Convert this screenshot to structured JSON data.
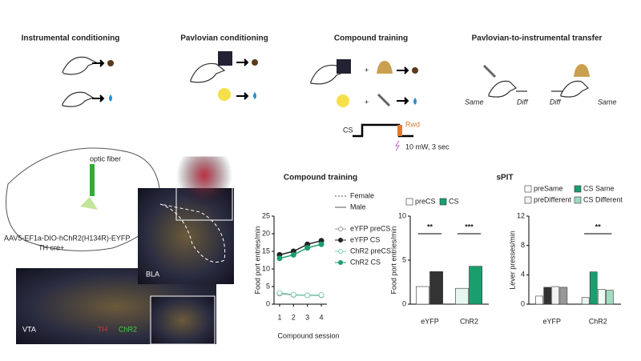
{
  "schematic": {
    "titles": [
      "Instrumental conditioning",
      "Pavlovian conditioning",
      "Compound training",
      "Pavlovian-to-instrumental transfer"
    ]
  },
  "compound": {
    "cs": "CS",
    "rwd": "Rwd",
    "stim": "10 mW, 3 sec"
  },
  "pit": {
    "labels": [
      "Same",
      "Diff",
      "Diff",
      "Same"
    ]
  },
  "histology": {
    "fiber": "optic fiber",
    "virus": "AAV5-EF1a-DIO-hChR2(H134R)-EYFP",
    "mouse": "TH cre+",
    "bla": "BLA",
    "vta": "VTA",
    "th": "TH",
    "chr2": "ChR2"
  },
  "chart_data": [
    {
      "type": "line",
      "title": "Compound training",
      "xlabel": "Compound session",
      "ylabel": "Food port entries/min",
      "x": [
        1,
        2,
        3,
        4
      ],
      "xlim": [
        0.6,
        4.4
      ],
      "xticks": [
        1,
        2,
        3,
        4
      ],
      "ylim": [
        0,
        25
      ],
      "yticks": [
        0,
        5,
        10,
        15,
        20,
        25
      ],
      "line_styles": [
        {
          "name": "Female",
          "dash": true
        },
        {
          "name": "Male",
          "dash": false
        }
      ],
      "series": [
        {
          "name": "eYFP preCS",
          "color": "#999999",
          "marker": "open",
          "values": [
            3,
            2.6,
            2.5,
            2.5
          ]
        },
        {
          "name": "eYFP CS",
          "color": "#222222",
          "marker": "filled",
          "values": [
            14,
            15,
            17,
            18
          ]
        },
        {
          "name": "ChR2 preCS",
          "color": "#7fcfb0",
          "marker": "open",
          "values": [
            3.2,
            2.7,
            2.5,
            2.6
          ]
        },
        {
          "name": "ChR2 CS",
          "color": "#1a9e6e",
          "marker": "filled",
          "values": [
            13,
            14,
            16,
            17
          ]
        }
      ]
    },
    {
      "type": "bar",
      "ylabel": "Food port entries/min",
      "categories": [
        "eYFP",
        "ChR2"
      ],
      "ylim": [
        0,
        10
      ],
      "yticks": [
        0,
        5,
        10
      ],
      "annotations": [
        "**",
        "***"
      ],
      "series": [
        {
          "name": "preCS",
          "color": "#ffffff",
          "colors": [
            "#ffffff",
            "#e8f6f0"
          ],
          "values": [
            2,
            1.8
          ]
        },
        {
          "name": "CS",
          "color": "#1a9e6e",
          "colors": [
            "#333333",
            "#1a9e6e"
          ],
          "values": [
            3.7,
            4.3
          ]
        }
      ]
    },
    {
      "type": "bar",
      "title": "sPIT",
      "ylabel": "Lever presses/min",
      "categories": [
        "eYFP",
        "ChR2"
      ],
      "ylim": [
        0,
        12
      ],
      "yticks": [
        0,
        4,
        8,
        12
      ],
      "annotations": [
        null,
        "**"
      ],
      "series": [
        {
          "name": "preSame",
          "color": "#ffffff",
          "colors": [
            "#ffffff",
            "#e8f6f0"
          ],
          "values": [
            1.1,
            0.9
          ]
        },
        {
          "name": "CS  Same",
          "color": "#1a9e6e",
          "colors": [
            "#333333",
            "#1a9e6e"
          ],
          "values": [
            2.3,
            4.4
          ]
        },
        {
          "name": "preDifferent",
          "color": "#f2f2f2",
          "colors": [
            "#f2f2f2",
            "#f0faf5"
          ],
          "values": [
            2.4,
            2.0
          ]
        },
        {
          "name": "CS  Different",
          "color": "#9fdcbf",
          "colors": [
            "#999999",
            "#9fdcbf"
          ],
          "values": [
            2.3,
            1.9
          ]
        }
      ]
    }
  ]
}
